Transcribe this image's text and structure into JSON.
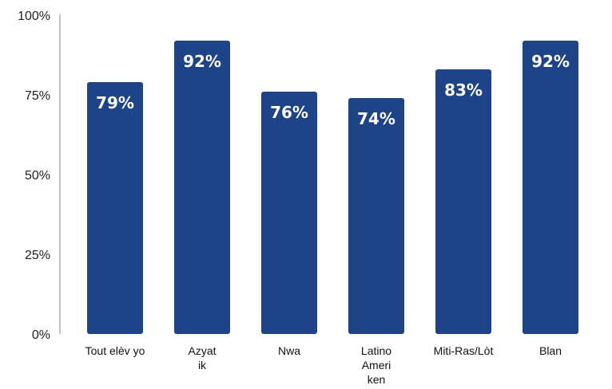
{
  "chart_data": {
    "type": "bar",
    "title": "",
    "xlabel": "",
    "ylabel": "",
    "ylim": [
      0,
      100
    ],
    "yticks": [
      "0%",
      "25%",
      "50%",
      "75%",
      "100%"
    ],
    "ytick_values": [
      0,
      25,
      50,
      75,
      100
    ],
    "categories": [
      [
        "Tout elèv yo"
      ],
      [
        "Azyat",
        "ik"
      ],
      [
        "Nwa"
      ],
      [
        "Latino",
        "Ameri",
        "ken"
      ],
      [
        "Miti-Ras/Lòt"
      ],
      [
        "Blan"
      ]
    ],
    "values": [
      79,
      92,
      76,
      74,
      83,
      92
    ],
    "value_labels": [
      "79%",
      "92%",
      "76%",
      "74%",
      "83%",
      "92%"
    ],
    "legend": "none",
    "grid": false,
    "bar_color": "#1e4487",
    "value_label_color": "#ffffff",
    "axis_color": "#888888"
  }
}
